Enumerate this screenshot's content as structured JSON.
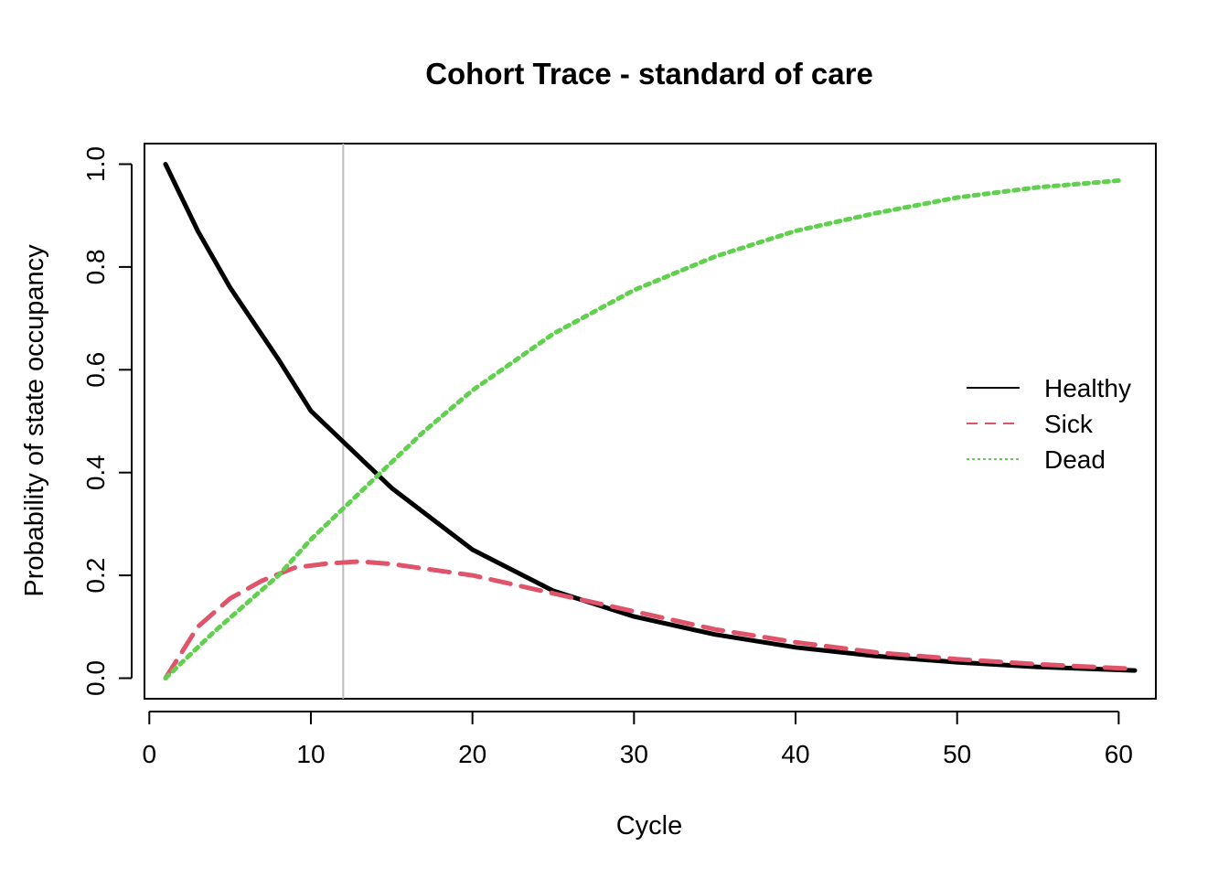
{
  "chart_data": {
    "type": "line",
    "title": "Cohort Trace - standard of care",
    "xlabel": "Cycle",
    "ylabel": "Probability of state occupancy",
    "xlim": [
      -0.3,
      62.3
    ],
    "ylim": [
      -0.04,
      1.04
    ],
    "x_ticks": [
      0,
      10,
      20,
      30,
      40,
      50,
      60
    ],
    "y_ticks": [
      0.0,
      0.2,
      0.4,
      0.6,
      0.8,
      1.0
    ],
    "x_tick_labels": [
      "0",
      "10",
      "20",
      "30",
      "40",
      "50",
      "60"
    ],
    "y_tick_labels": [
      "0.0",
      "0.2",
      "0.4",
      "0.6",
      "0.8",
      "1.0"
    ],
    "vline_x": 12,
    "vline_color": "#bebebe",
    "legend_position": "right",
    "series": [
      {
        "name": "Healthy",
        "color": "#000000",
        "dash": "solid",
        "x": [
          1,
          3,
          5,
          8,
          10,
          12,
          15,
          20,
          25,
          30,
          35,
          40,
          45,
          50,
          55,
          61
        ],
        "values": [
          1.0,
          0.87,
          0.76,
          0.62,
          0.52,
          0.46,
          0.37,
          0.25,
          0.17,
          0.12,
          0.085,
          0.06,
          0.043,
          0.031,
          0.022,
          0.015
        ]
      },
      {
        "name": "Sick",
        "color": "#df536b",
        "dash": "dashed",
        "x": [
          1,
          3,
          5,
          7,
          9,
          11,
          13,
          15,
          20,
          25,
          30,
          35,
          40,
          45,
          50,
          55,
          61
        ],
        "values": [
          0.0,
          0.1,
          0.155,
          0.19,
          0.215,
          0.223,
          0.227,
          0.222,
          0.2,
          0.165,
          0.13,
          0.095,
          0.07,
          0.05,
          0.037,
          0.027,
          0.018
        ]
      },
      {
        "name": "Dead",
        "color": "#61d04f",
        "dash": "dotted",
        "x": [
          1,
          4,
          8,
          10,
          12,
          14,
          17,
          20,
          25,
          30,
          35,
          40,
          45,
          50,
          55,
          60
        ],
        "values": [
          0.0,
          0.09,
          0.2,
          0.27,
          0.33,
          0.39,
          0.48,
          0.56,
          0.67,
          0.755,
          0.82,
          0.87,
          0.905,
          0.935,
          0.955,
          0.968
        ]
      }
    ]
  }
}
